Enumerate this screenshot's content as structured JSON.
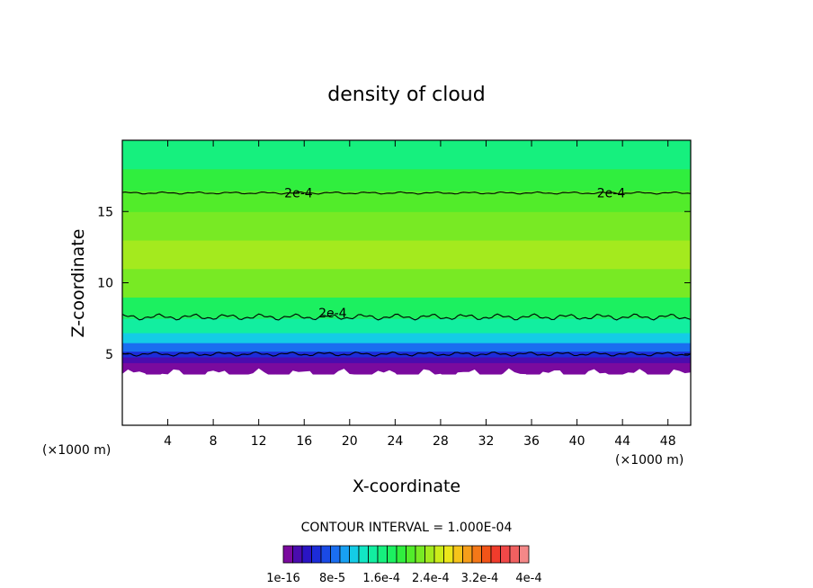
{
  "chart_data": {
    "type": "heatmap",
    "title": "density of cloud",
    "xlabel": "X-coordinate",
    "ylabel": "Z-coordinate",
    "x_unit_label_left": "(×1000 m)",
    "x_unit_label_right": "(×1000 m)",
    "xlim": [
      0,
      50
    ],
    "ylim": [
      0,
      20
    ],
    "xticks": [
      4,
      8,
      12,
      16,
      20,
      24,
      28,
      32,
      36,
      40,
      44,
      48
    ],
    "yticks": [
      5,
      10,
      15
    ],
    "contour_interval_text": "CONTOUR INTERVAL = 1.000E-04",
    "contour_labels": [
      {
        "text": "2e-4",
        "x": 15.5,
        "z": 16.3
      },
      {
        "text": "2e-4",
        "x": 43.0,
        "z": 16.3
      },
      {
        "text": "2e-4",
        "x": 18.5,
        "z": 7.9
      }
    ],
    "colorbar": {
      "tick_labels": [
        "1e-16",
        "8e-5",
        "1.6e-4",
        "2.4e-4",
        "3.2e-4",
        "4e-4"
      ],
      "colors": [
        "#7a0a9e",
        "#4a0cae",
        "#2a14c4",
        "#1c2cd8",
        "#1a4ae6",
        "#1a6ef0",
        "#18a0f2",
        "#14cce6",
        "#12e6c4",
        "#12eea0",
        "#16f07e",
        "#1cf060",
        "#30ee3e",
        "#52ec2a",
        "#78ea24",
        "#a4ea1e",
        "#ccec1a",
        "#ece61a",
        "#f6c41a",
        "#f69e1a",
        "#f47818",
        "#f25418",
        "#f03c2c",
        "#f04848",
        "#f06060",
        "#f48888"
      ]
    },
    "profile": [
      {
        "z": 3.6,
        "value": 0.0
      },
      {
        "z": 4.0,
        "value": 1e-05
      },
      {
        "z": 4.4,
        "value": 3e-05
      },
      {
        "z": 4.8,
        "value": 5e-05
      },
      {
        "z": 5.2,
        "value": 8e-05
      },
      {
        "z": 5.8,
        "value": 0.00011
      },
      {
        "z": 6.5,
        "value": 0.00014
      },
      {
        "z": 7.5,
        "value": 0.00018
      },
      {
        "z": 9.0,
        "value": 0.00022
      },
      {
        "z": 11.0,
        "value": 0.00024
      },
      {
        "z": 13.0,
        "value": 0.00023
      },
      {
        "z": 15.0,
        "value": 0.00021
      },
      {
        "z": 16.5,
        "value": 0.00019
      },
      {
        "z": 18.0,
        "value": 0.00016
      },
      {
        "z": 20.0,
        "value": 0.00014
      }
    ]
  }
}
